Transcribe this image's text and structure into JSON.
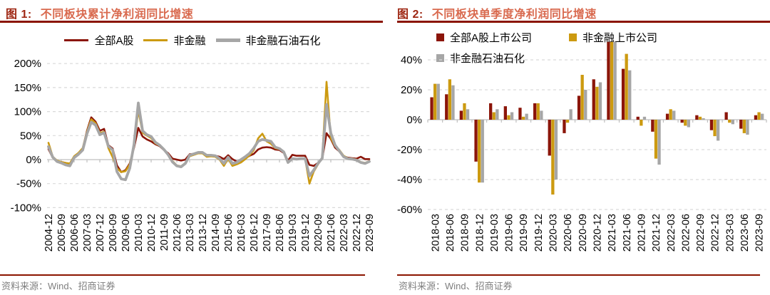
{
  "colors": {
    "series_red": "#8B1509",
    "series_gold": "#CC9A10",
    "series_gray": "#A6A6A6",
    "title_prefix_red": "#9E2612",
    "title_coral": "#D96A4F",
    "rule_dark_red": "#8B1500",
    "gridline_gray": "#D9D9D9",
    "axis_line_gray": "#BFBFBF",
    "source_gray": "#7F7F7F"
  },
  "figure1": {
    "title_prefix": "图 1:",
    "title": "不同板块累计净利润同比增速",
    "source": "资料来源：Wind、招商证券"
  },
  "figure2": {
    "title_prefix": "图 2:",
    "title": "不同板块单季度净利润同比增速",
    "source": "资料来源：Wind、招商证券"
  },
  "chart_data": [
    {
      "id": "fig1",
      "type": "line",
      "title": "不同板块累计净利润同比增速",
      "xlabel": "",
      "ylabel": "",
      "y_unit": "%",
      "ylim": [
        -100,
        200
      ],
      "yticks": [
        200,
        150,
        100,
        50,
        0,
        -50,
        -100
      ],
      "grid": "dashed-horizontal",
      "legend_position": "top-center",
      "x_tick_labels": [
        "2004-12",
        "2005-09",
        "2006-06",
        "2007-03",
        "2007-12",
        "2008-09",
        "2009-06",
        "2010-03",
        "2010-12",
        "2011-09",
        "2012-06",
        "2013-03",
        "2013-12",
        "2014-09",
        "2015-06",
        "2016-03",
        "2016-12",
        "2017-09",
        "2018-06",
        "2019-03",
        "2019-12",
        "2020-09",
        "2021-06",
        "2022-03",
        "2022-12",
        "2023-09"
      ],
      "x_points_per_tick": 3,
      "x_start": "2004-12",
      "x_end": "2023-09",
      "x_frequency": "quarterly",
      "series": [
        {
          "name": "全部A股",
          "color": "#8B1509",
          "values": [
            22,
            4,
            -3,
            -5,
            -7,
            -9,
            6,
            13,
            22,
            60,
            88,
            79,
            60,
            64,
            30,
            23,
            -12,
            -26,
            -22,
            -8,
            25,
            66,
            48,
            42,
            38,
            32,
            28,
            20,
            13,
            2,
            0,
            -2,
            0,
            11,
            12,
            14,
            14,
            9,
            9,
            8,
            6,
            1,
            9,
            1,
            -4,
            -2,
            3,
            8,
            12,
            21,
            25,
            26,
            25,
            21,
            20,
            14,
            -2,
            10,
            8,
            8,
            8,
            -11,
            -13,
            -7,
            2,
            55,
            43,
            25,
            17,
            7,
            4,
            3,
            2,
            6,
            1,
            1
          ]
        },
        {
          "name": "非金融",
          "color": "#CC9A10",
          "values": [
            35,
            6,
            -2,
            -5,
            -7,
            -8,
            7,
            14,
            24,
            58,
            84,
            76,
            55,
            58,
            24,
            5,
            -18,
            -26,
            -24,
            -10,
            28,
            103,
            56,
            50,
            45,
            34,
            29,
            21,
            11,
            -3,
            -12,
            -14,
            -7,
            7,
            10,
            13,
            13,
            6,
            7,
            6,
            0,
            -13,
            2,
            -13,
            -10,
            -6,
            1,
            9,
            20,
            44,
            54,
            38,
            33,
            24,
            22,
            16,
            -5,
            2,
            1,
            2,
            2,
            -50,
            -25,
            -10,
            4,
            162,
            45,
            28,
            20,
            8,
            3,
            2,
            0,
            -5,
            -7,
            -3
          ]
        },
        {
          "name": "非金融石油石化",
          "color": "#A6A6A6",
          "values": [
            27,
            5,
            -4,
            -7,
            -11,
            -13,
            4,
            11,
            20,
            54,
            78,
            72,
            52,
            56,
            28,
            20,
            -25,
            -40,
            -42,
            -18,
            32,
            118,
            60,
            52,
            48,
            36,
            30,
            21,
            10,
            -5,
            -13,
            -15,
            -8,
            9,
            12,
            15,
            15,
            9,
            9,
            8,
            2,
            -8,
            5,
            -8,
            -6,
            0,
            6,
            13,
            24,
            38,
            42,
            40,
            38,
            26,
            23,
            16,
            -6,
            2,
            1,
            2,
            2,
            -34,
            -22,
            -8,
            3,
            115,
            55,
            30,
            18,
            6,
            2,
            1,
            -1,
            -6,
            -8,
            -4
          ]
        }
      ]
    },
    {
      "id": "fig2",
      "type": "bar",
      "title": "不同板块单季度净利润同比增速",
      "xlabel": "",
      "ylabel": "",
      "y_unit": "%",
      "ylim": [
        -60,
        52
      ],
      "yticks": [
        40,
        20,
        0,
        -20,
        -40,
        -60
      ],
      "grid": "dashed-horizontal",
      "legend_position": "top-left",
      "note": "2021-03 bars exceed the axis maximum and are clipped at the plot top",
      "categories": [
        "2018-03",
        "2018-06",
        "2018-09",
        "2018-12",
        "2019-03",
        "2019-06",
        "2019-09",
        "2019-12",
        "2020-03",
        "2020-06",
        "2020-09",
        "2020-12",
        "2021-03",
        "2021-06",
        "2021-09",
        "2021-12",
        "2022-03",
        "2022-06",
        "2022-09",
        "2022-12",
        "2023-03",
        "2023-06",
        "2023-09"
      ],
      "series": [
        {
          "name": "全部A股上市公司",
          "color": "#8B1509",
          "values": [
            15,
            17,
            6,
            -28,
            11,
            9,
            8,
            11,
            -24,
            -9,
            16,
            27,
            52,
            34,
            2,
            -8,
            4,
            -2,
            3,
            -7,
            5,
            -6,
            3
          ]
        },
        {
          "name": "非金融上市公司",
          "color": "#CC9A10",
          "values": [
            24,
            27,
            11,
            -42,
            5,
            3,
            2,
            11,
            -50,
            -2,
            30,
            22,
            52,
            44,
            -4,
            -26,
            7,
            -4,
            2,
            -11,
            -2,
            -9,
            5
          ]
        },
        {
          "name": "非金融石油石化",
          "color": "#A6A6A6",
          "values": [
            24,
            23,
            7,
            -42,
            7,
            5,
            4,
            6,
            -40,
            7,
            20,
            25,
            52,
            33,
            2,
            -30,
            6,
            -5,
            1,
            -14,
            -3,
            -10,
            4
          ]
        }
      ]
    }
  ]
}
